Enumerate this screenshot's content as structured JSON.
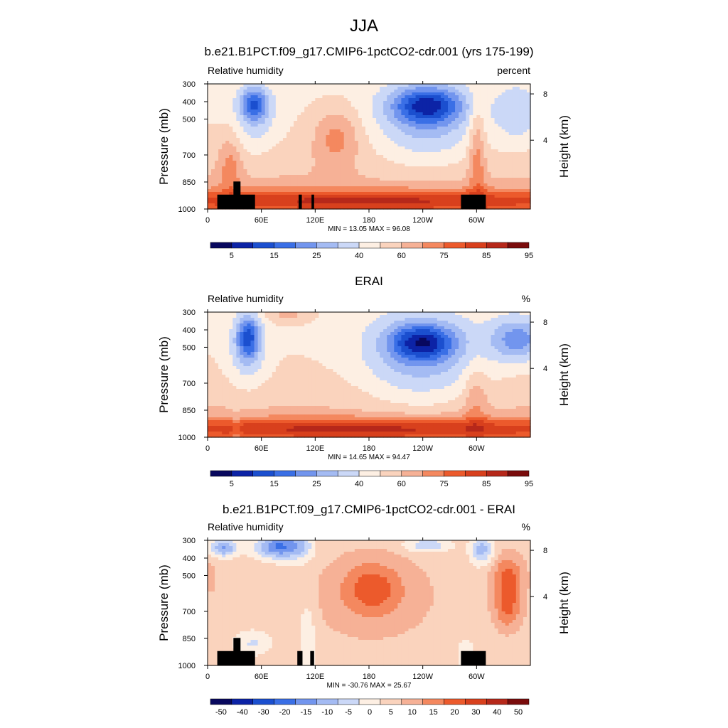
{
  "page_title": "JJA",
  "chart_data": [
    {
      "type": "heatmap",
      "title": "b.e21.B1PCT.f09_g17.CMIP6-1pctCO2-cdr.001 (yrs 175-199)",
      "left_label": "Relative humidity",
      "right_label": "percent",
      "ylabel": "Pressure (mb)",
      "ylabel_right": "Height (km)",
      "x_ticks": [
        "0",
        "60E",
        "120E",
        "180",
        "120W",
        "60W"
      ],
      "y_ticks": [
        "300",
        "400",
        "500",
        "700",
        "850",
        "1000"
      ],
      "height_ticks": [
        "8",
        "4"
      ],
      "stats": "MIN =  13.05  MAX =  96.08",
      "colorbar_labels": [
        "5",
        "15",
        "25",
        "40",
        "60",
        "75",
        "85",
        "95"
      ],
      "colorbar_colors": [
        "#08085e",
        "#0c23a6",
        "#1b4fcf",
        "#3a6fe6",
        "#7295ee",
        "#a4bbf3",
        "#cbd8f7",
        "#fdefe3",
        "#fad3bd",
        "#f6b196",
        "#f4885f",
        "#ec5a2c",
        "#d8401d",
        "#b6281a",
        "#7a0c0c"
      ],
      "contour_levels": [
        5,
        10,
        15,
        20,
        25,
        30,
        40,
        50,
        60,
        70,
        75,
        80,
        85,
        90,
        95
      ],
      "value_range": [
        13.05,
        96.08
      ],
      "surface_mask": true
    },
    {
      "type": "heatmap",
      "title": "ERAI",
      "left_label": "Relative humidity",
      "right_label": "%",
      "ylabel": "Pressure (mb)",
      "ylabel_right": "Height (km)",
      "x_ticks": [
        "0",
        "60E",
        "120E",
        "180",
        "120W",
        "60W"
      ],
      "y_ticks": [
        "300",
        "400",
        "500",
        "700",
        "850",
        "1000"
      ],
      "height_ticks": [
        "8",
        "4"
      ],
      "stats": "MIN =  14.65  MAX =  94.47",
      "colorbar_labels": [
        "5",
        "15",
        "25",
        "40",
        "60",
        "75",
        "85",
        "95"
      ],
      "colorbar_colors": [
        "#08085e",
        "#0c23a6",
        "#1b4fcf",
        "#3a6fe6",
        "#7295ee",
        "#a4bbf3",
        "#cbd8f7",
        "#fdefe3",
        "#fad3bd",
        "#f6b196",
        "#f4885f",
        "#ec5a2c",
        "#d8401d",
        "#b6281a",
        "#7a0c0c"
      ],
      "contour_levels": [
        5,
        10,
        15,
        20,
        25,
        30,
        40,
        50,
        60,
        70,
        75,
        80,
        85,
        90,
        95
      ],
      "value_range": [
        14.65,
        94.47
      ],
      "surface_mask": false
    },
    {
      "type": "heatmap",
      "title": "b.e21.B1PCT.f09_g17.CMIP6-1pctCO2-cdr.001 - ERAI",
      "left_label": "Relative humidity",
      "right_label": "%",
      "ylabel": "Pressure (mb)",
      "ylabel_right": "Height (km)",
      "x_ticks": [
        "0",
        "60E",
        "120E",
        "180",
        "120W",
        "60W"
      ],
      "y_ticks": [
        "300",
        "400",
        "500",
        "700",
        "850",
        "1000"
      ],
      "height_ticks": [
        "8",
        "4"
      ],
      "stats": "MIN = -30.76  MAX =  25.67",
      "colorbar_labels": [
        "-50",
        "-40",
        "-30",
        "-20",
        "-15",
        "-10",
        "-5",
        "0",
        "5",
        "10",
        "15",
        "20",
        "30",
        "40",
        "50"
      ],
      "colorbar_colors": [
        "#08085e",
        "#0c23a6",
        "#1b4fcf",
        "#3a6fe6",
        "#7295ee",
        "#a4bbf3",
        "#cbd8f7",
        "#fdefe3",
        "#fad3bd",
        "#f6b196",
        "#f4885f",
        "#ec5a2c",
        "#d8401d",
        "#b6281a",
        "#7a0c0c"
      ],
      "contour_levels": [
        -50,
        -40,
        -30,
        -20,
        -15,
        -10,
        -5,
        0,
        5,
        10,
        15,
        20,
        30,
        40,
        50
      ],
      "value_range": [
        -30.76,
        25.67
      ],
      "surface_mask": true
    }
  ]
}
